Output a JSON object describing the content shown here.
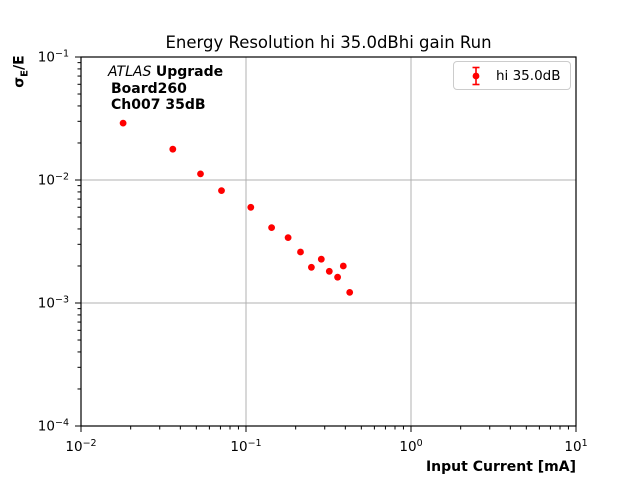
{
  "title": "Energy Resolution hi 35.0dBhi gain Run",
  "axes": {
    "xlabel": "Input Current [mA]",
    "ylabel": {
      "sigma": "σ",
      "sub": "E",
      "rest": "/E"
    }
  },
  "annotation": {
    "line1_italic": "ATLAS",
    "line1_bold": "Upgrade",
    "line2": "Board260",
    "line3": "Ch007 35dB"
  },
  "legend": {
    "label": "hi 35.0dB"
  },
  "colors": {
    "series": "#ff0000",
    "grid": "#b0b0b0",
    "frame": "#000000",
    "legend_border": "#cccccc"
  },
  "chart_data": {
    "type": "scatter",
    "title": "Energy Resolution hi 35.0dBhi gain Run",
    "xlabel": "Input Current [mA]",
    "ylabel": "sigma_E/E",
    "xscale": "log",
    "yscale": "log",
    "xlim": [
      0.01,
      10
    ],
    "ylim": [
      0.0001,
      0.1
    ],
    "x_tick_exponents": [
      -2,
      -1,
      0,
      1
    ],
    "y_tick_exponents": [
      -1,
      -2,
      -3,
      -4
    ],
    "grid": true,
    "legend_position": "upper right",
    "series": [
      {
        "name": "hi 35.0dB",
        "marker": "circle",
        "color": "#ff0000",
        "x": [
          0.018,
          0.036,
          0.053,
          0.071,
          0.107,
          0.143,
          0.18,
          0.214,
          0.249,
          0.286,
          0.32,
          0.359,
          0.389,
          0.425
        ],
        "y": [
          0.029,
          0.0178,
          0.0112,
          0.0082,
          0.006,
          0.0041,
          0.0034,
          0.0026,
          0.00195,
          0.00227,
          0.00181,
          0.00162,
          0.002,
          0.00122
        ]
      }
    ]
  }
}
